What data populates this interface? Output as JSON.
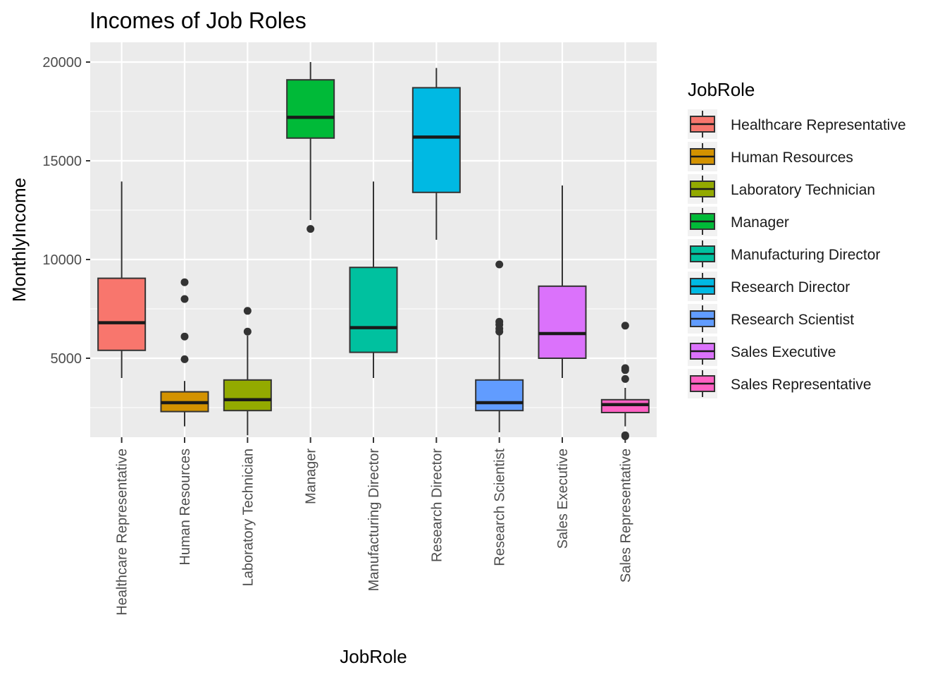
{
  "chart_data": {
    "type": "boxplot",
    "title": "Incomes of Job Roles",
    "xlabel": "JobRole",
    "ylabel": "MonthlyIncome",
    "ylim": [
      1000,
      21000
    ],
    "yticks": [
      5000,
      10000,
      15000,
      20000
    ],
    "ytick_labels": [
      "5000",
      "10000",
      "15000",
      "20000"
    ],
    "grid": true,
    "legend": {
      "title": "JobRole",
      "placement": "right"
    },
    "categories": [
      "Healthcare Representative",
      "Human Resources",
      "Laboratory Technician",
      "Manager",
      "Manufacturing Director",
      "Research Director",
      "Research Scientist",
      "Sales Executive",
      "Sales Representative"
    ],
    "boxes": [
      {
        "name": "Healthcare Representative",
        "color": "#F8766D",
        "min": 4000,
        "q1": 5400,
        "median": 6800,
        "q3": 9050,
        "max": 13950,
        "outliers": []
      },
      {
        "name": "Human Resources",
        "color": "#D39200",
        "min": 1550,
        "q1": 2300,
        "median": 2750,
        "q3": 3300,
        "max": 3850,
        "outliers": [
          4950,
          6100,
          8000,
          8850
        ]
      },
      {
        "name": "Laboratory Technician",
        "color": "#93AA00",
        "min": 1100,
        "q1": 2350,
        "median": 2900,
        "q3": 3900,
        "max": 6150,
        "outliers": [
          6350,
          7400
        ]
      },
      {
        "name": "Manager",
        "color": "#00BA38",
        "min": 12000,
        "q1": 16150,
        "median": 17200,
        "q3": 19100,
        "max": 20000,
        "outliers": [
          11550
        ]
      },
      {
        "name": "Manufacturing Director",
        "color": "#00C19F",
        "min": 4000,
        "q1": 5300,
        "median": 6550,
        "q3": 9600,
        "max": 13950,
        "outliers": []
      },
      {
        "name": "Research Director",
        "color": "#00B9E3",
        "min": 11000,
        "q1": 13400,
        "median": 16200,
        "q3": 18700,
        "max": 19700,
        "outliers": []
      },
      {
        "name": "Research Scientist",
        "color": "#619CFF",
        "min": 1250,
        "q1": 2350,
        "median": 2750,
        "q3": 3900,
        "max": 6200,
        "outliers": [
          6350,
          6500,
          6700,
          6850,
          9750
        ]
      },
      {
        "name": "Sales Executive",
        "color": "#DB72FB",
        "min": 4000,
        "q1": 5000,
        "median": 6250,
        "q3": 8650,
        "max": 13750,
        "outliers": []
      },
      {
        "name": "Sales Representative",
        "color": "#FF61C3",
        "min": 1550,
        "q1": 2250,
        "median": 2650,
        "q3": 2900,
        "max": 3500,
        "outliers": [
          1050,
          1100,
          3950,
          4400,
          4500,
          6650
        ]
      }
    ]
  }
}
